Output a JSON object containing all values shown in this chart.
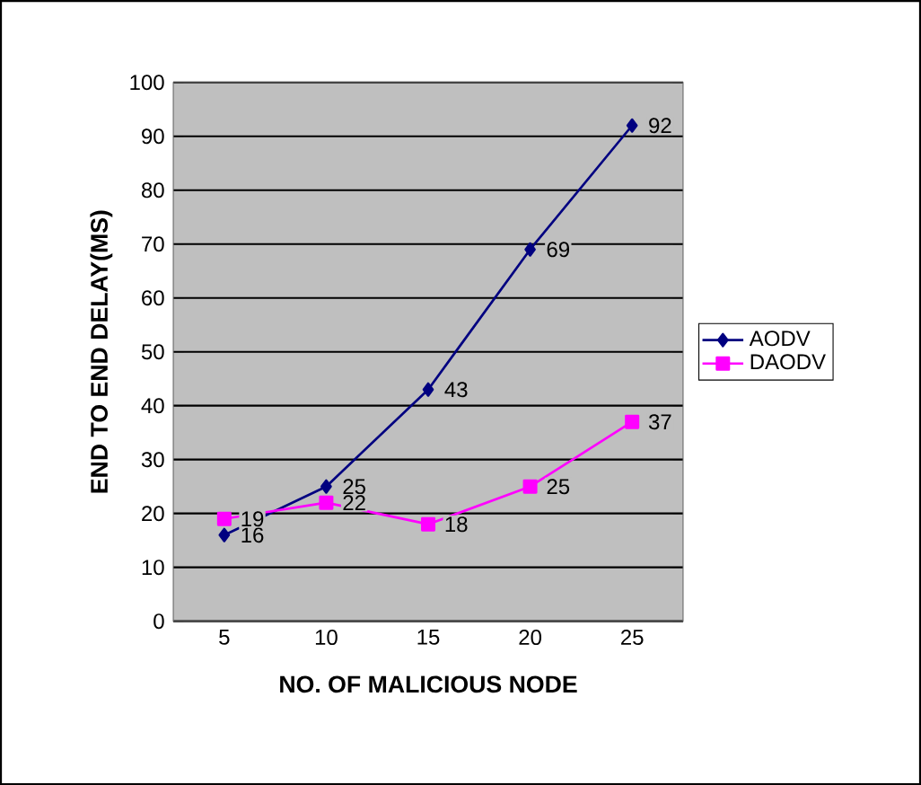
{
  "chart_data": {
    "type": "line",
    "xlabel": "NO. OF MALICIOUS NODE",
    "ylabel": "END TO END DELAY(MS)",
    "categories": [
      "5",
      "10",
      "15",
      "20",
      "25"
    ],
    "series": [
      {
        "name": "AODV",
        "color": "#000080",
        "marker": "diamond",
        "values": [
          16,
          25,
          43,
          69,
          92
        ]
      },
      {
        "name": "DAODV",
        "color": "#ff00ff",
        "marker": "square",
        "values": [
          19,
          22,
          18,
          25,
          37
        ]
      }
    ],
    "ylim": [
      0,
      100
    ],
    "yticks": [
      0,
      10,
      20,
      30,
      40,
      50,
      60,
      70,
      80,
      90,
      100
    ],
    "grid": "y",
    "legend": "right",
    "data_labels": true
  }
}
